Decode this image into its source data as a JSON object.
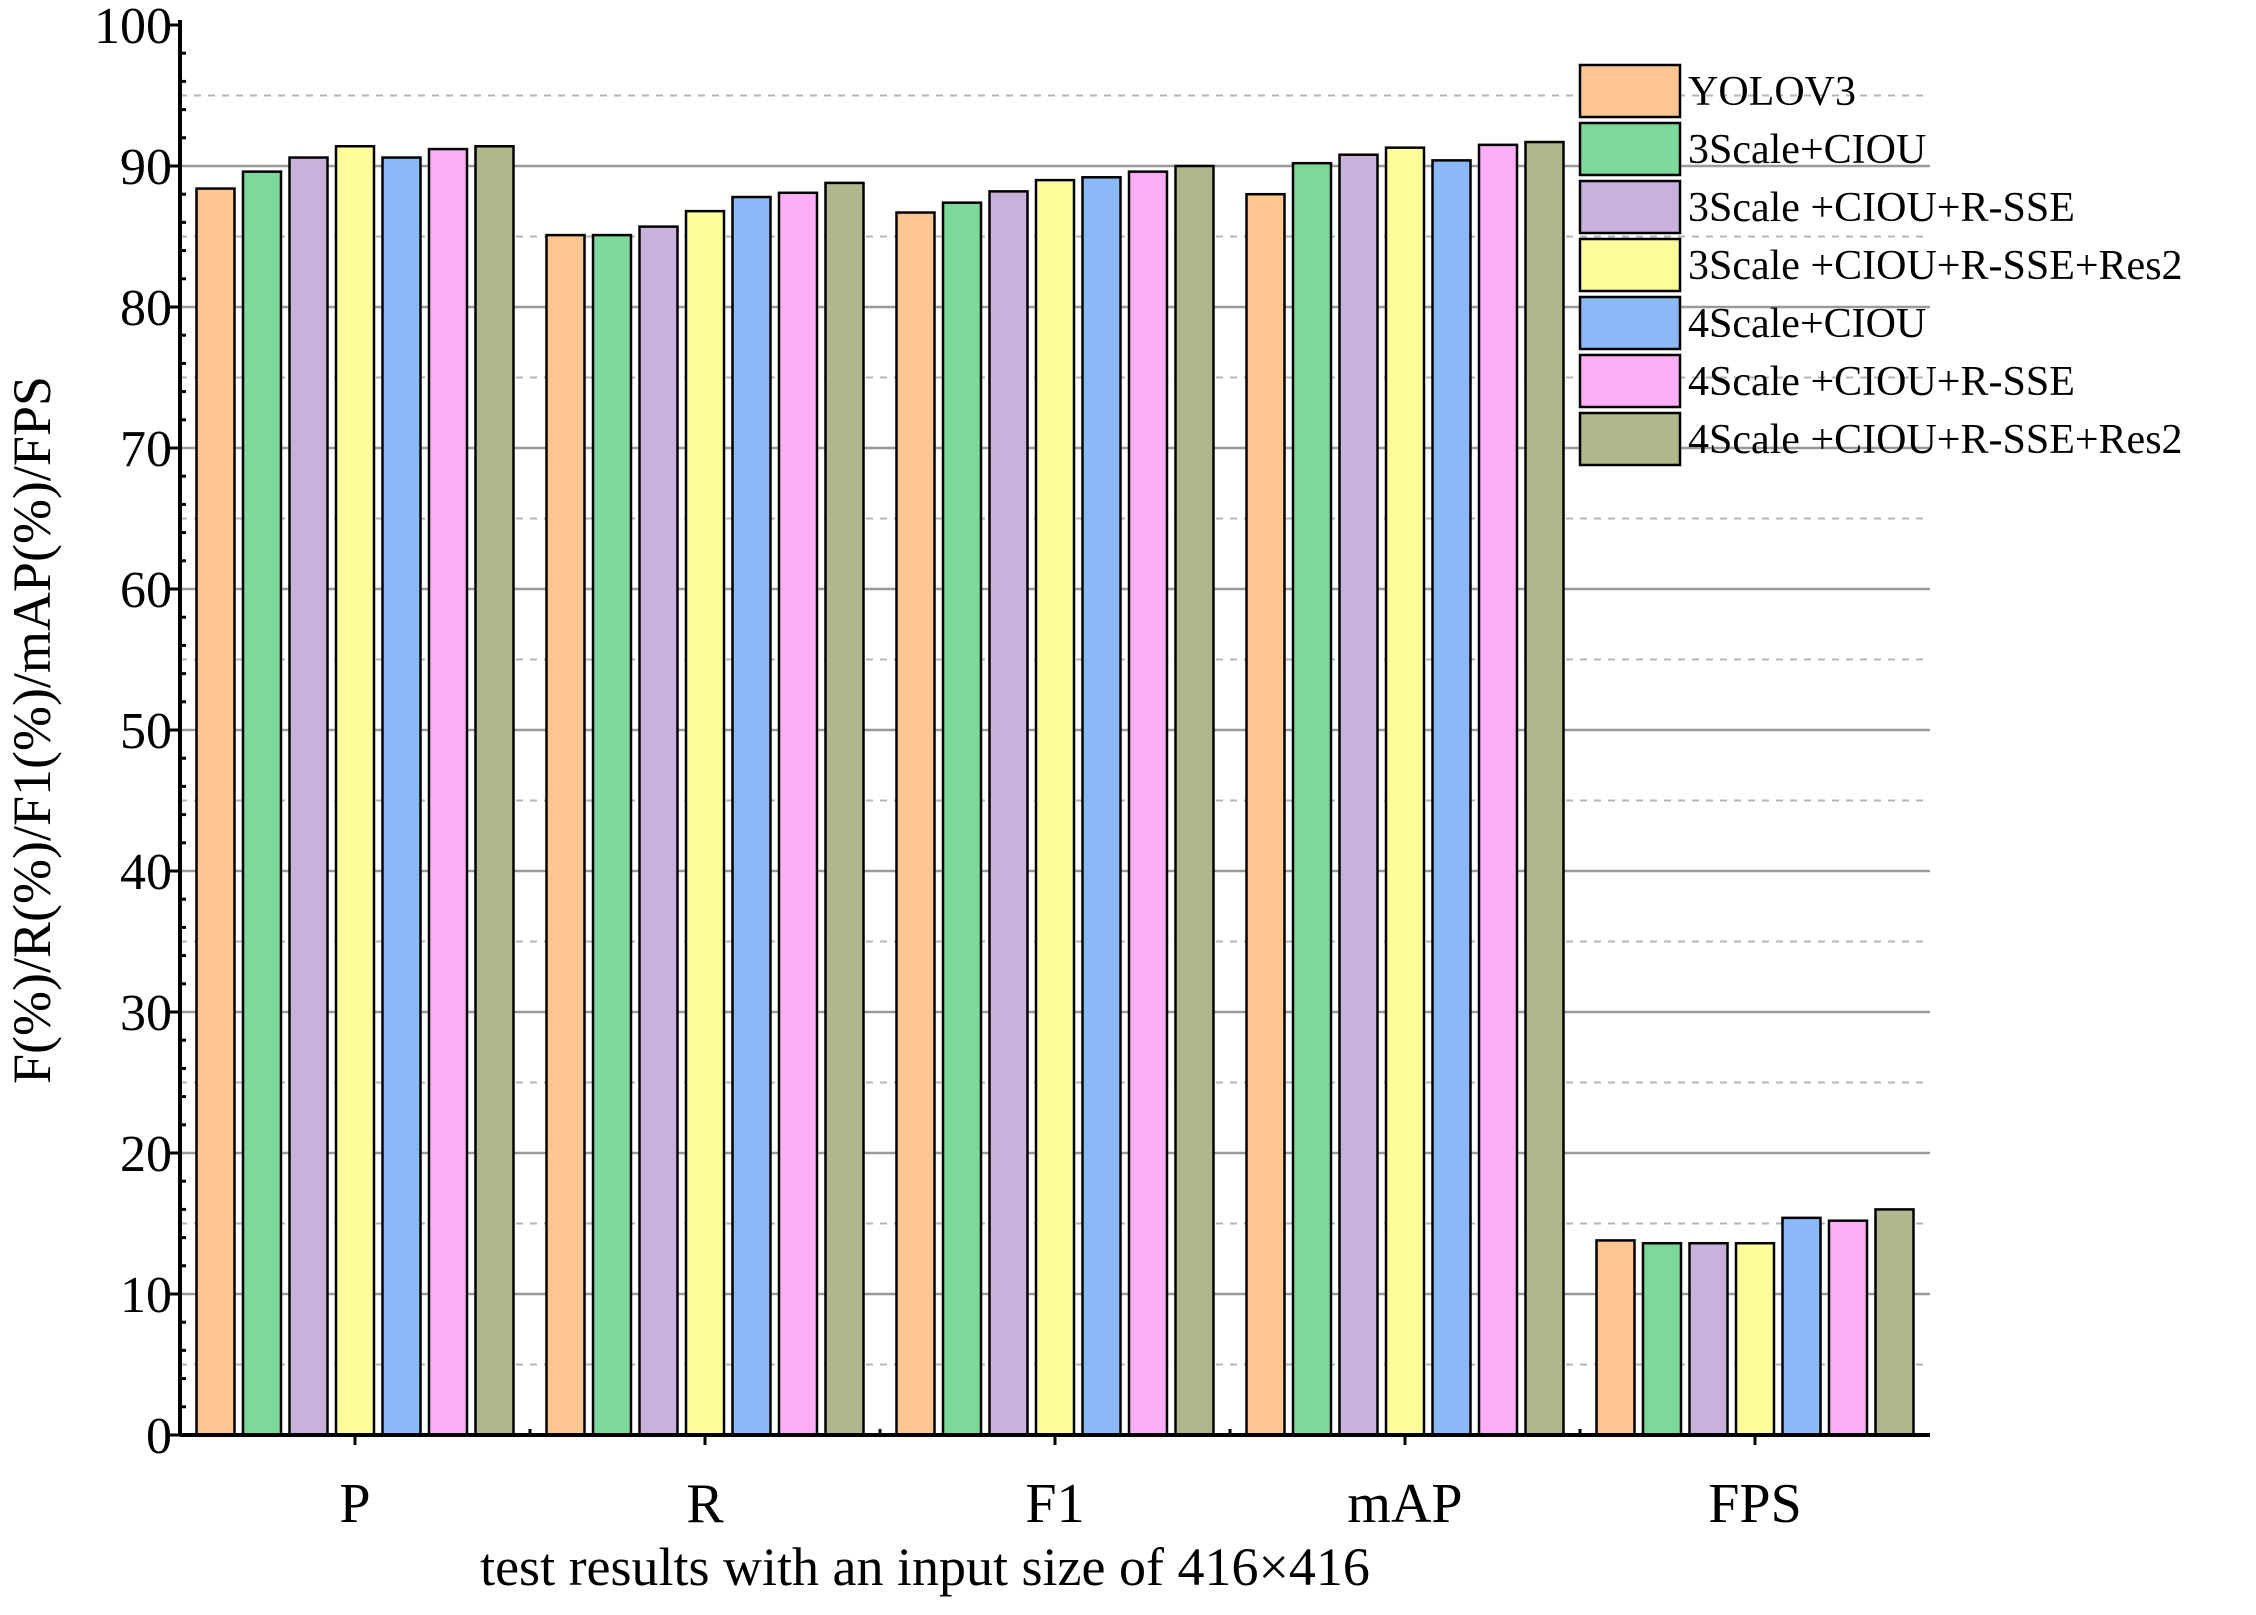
{
  "chart_data": {
    "type": "bar",
    "title": "",
    "xlabel": "test results with an input size of 416×416",
    "ylabel": "F(%)/R(%)/F1(%)/mAP(%)/FPS",
    "ylim": [
      0,
      100
    ],
    "yticks": [
      "0",
      "10",
      "20",
      "30",
      "40",
      "50",
      "60",
      "70",
      "80",
      "90",
      "100"
    ],
    "grid": true,
    "legend_position": "top-right",
    "categories": [
      "P",
      "R",
      "F1",
      "mAP",
      "FPS"
    ],
    "series": [
      {
        "name": "YOLOV3",
        "color": "#FDC691",
        "values": [
          88.4,
          85.1,
          86.7,
          88.0,
          13.8
        ]
      },
      {
        "name": "3Scale+CIOU",
        "color": "#7CD89B",
        "values": [
          89.6,
          85.1,
          87.4,
          90.2,
          13.6
        ]
      },
      {
        "name": "3Scale +CIOU+R-SSE",
        "color": "#C8B1DA",
        "values": [
          90.6,
          85.7,
          88.2,
          90.8,
          13.6
        ]
      },
      {
        "name": "3Scale +CIOU+R-SSE+Res2",
        "color": "#FDFD99",
        "values": [
          91.4,
          86.8,
          89.0,
          91.3,
          13.6
        ]
      },
      {
        "name": "4Scale+CIOU",
        "color": "#8BB8F6",
        "values": [
          90.6,
          87.8,
          89.2,
          90.4,
          15.4
        ]
      },
      {
        "name": "4Scale +CIOU+R-SSE",
        "color": "#FCAFF7",
        "values": [
          91.2,
          88.1,
          89.6,
          91.5,
          15.2
        ]
      },
      {
        "name": "4Scale +CIOU+R-SSE+Res2",
        "color": "#B1B68C",
        "values": [
          91.4,
          88.8,
          90.0,
          91.7,
          16.0
        ]
      }
    ]
  }
}
